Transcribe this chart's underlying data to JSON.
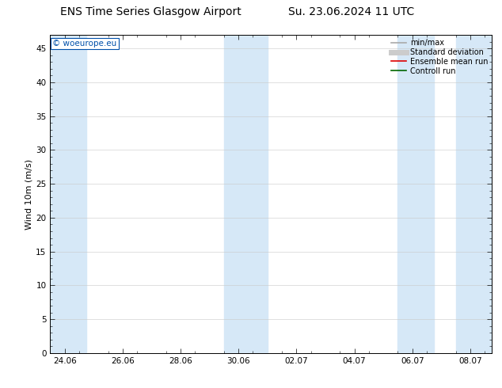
{
  "title_left": "ENS Time Series Glasgow Airport",
  "title_right": "Su. 23.06.2024 11 UTC",
  "ylabel": "Wind 10m (m/s)",
  "watermark": "© woeurope.eu",
  "ylim": [
    0,
    47
  ],
  "yticks": [
    0,
    5,
    10,
    15,
    20,
    25,
    30,
    35,
    40,
    45
  ],
  "xtick_labels": [
    "24.06",
    "26.06",
    "28.06",
    "30.06",
    "02.07",
    "04.07",
    "06.07",
    "08.07"
  ],
  "xtick_positions": [
    0,
    2,
    4,
    6,
    8,
    10,
    12,
    14
  ],
  "xlim": [
    -0.5,
    14.75
  ],
  "bg_color": "#ffffff",
  "plot_bg": "#ffffff",
  "band_color": "#d6e8f7",
  "shaded_bands": [
    [
      -0.5,
      0.75
    ],
    [
      5.5,
      7.0
    ],
    [
      11.5,
      12.75
    ],
    [
      13.5,
      14.75
    ]
  ],
  "legend_items": [
    {
      "label": "min/max",
      "color": "#aaaaaa",
      "lw": 1.2
    },
    {
      "label": "Standard deviation",
      "color": "#cccccc",
      "lw": 5
    },
    {
      "label": "Ensemble mean run",
      "color": "#dd0000",
      "lw": 1.2
    },
    {
      "label": "Controll run",
      "color": "#006600",
      "lw": 1.2
    }
  ],
  "title_fontsize": 10,
  "ylabel_fontsize": 8,
  "tick_fontsize": 7.5,
  "watermark_color": "#0050aa",
  "watermark_fontsize": 7.5,
  "legend_fontsize": 7,
  "grid_color": "#c8c8c8"
}
